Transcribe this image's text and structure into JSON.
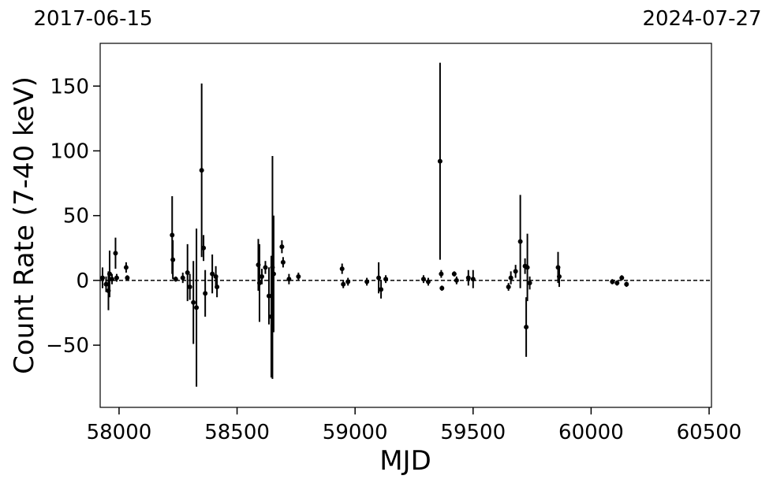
{
  "chart_data": {
    "type": "errorbar",
    "annotations": [
      "2017-06-15",
      "2024-07-27"
    ],
    "x_label": "MJD",
    "y_label": "Count Rate (7-40 keV)",
    "xlim": [
      57920,
      60510
    ],
    "ylim": [
      -98,
      183
    ],
    "xticks": [
      58000,
      58500,
      59000,
      59500,
      60000,
      60500
    ],
    "yticks": [
      {
        "value": -50,
        "label": "−50"
      },
      0,
      50,
      100,
      150
    ],
    "reference_line": 0,
    "series": [
      {
        "color": "#000000",
        "x": [
          57930,
          57945,
          57955,
          57960,
          57970,
          57985,
          57990,
          58030,
          58035,
          58225,
          58228,
          58240,
          58270,
          58290,
          58300,
          58315,
          58328,
          58350,
          58358,
          58365,
          58395,
          58410,
          58415,
          58590,
          58595,
          58605,
          58620,
          58635,
          58645,
          58650,
          58655,
          58690,
          58695,
          58720,
          58760,
          58945,
          58950,
          58970,
          59050,
          59100,
          59110,
          59130,
          59290,
          59310,
          59360,
          59365,
          59368,
          59420,
          59430,
          59480,
          59500,
          59650,
          59660,
          59680,
          59700,
          59720,
          59725,
          59730,
          59740,
          59860,
          59865,
          60090,
          60110,
          60130,
          60150
        ],
        "values": [
          2,
          -3,
          -8,
          5,
          1,
          21,
          2,
          10,
          2,
          35,
          16,
          1,
          2,
          6,
          -5,
          -17,
          -21,
          85,
          25,
          -10,
          5,
          3,
          -5,
          12,
          -2,
          3,
          10,
          -12,
          -28,
          10,
          5,
          26,
          14,
          1,
          3,
          9,
          -3,
          -1,
          -1,
          2,
          -7,
          1,
          1,
          -1,
          92,
          5,
          -6,
          5,
          0,
          2,
          1,
          -5,
          2,
          7,
          30,
          11,
          -36,
          10,
          -2,
          10,
          3,
          -1,
          -2,
          2,
          -3
        ],
        "errors": [
          8,
          6,
          15,
          18,
          4,
          12,
          3,
          4,
          2,
          30,
          15,
          2,
          4,
          22,
          10,
          32,
          61,
          67,
          10,
          18,
          15,
          8,
          8,
          20,
          30,
          6,
          5,
          22,
          47,
          86,
          45,
          5,
          4,
          4,
          3,
          4,
          3,
          3,
          3,
          12,
          7,
          3,
          3,
          3,
          76,
          3,
          2,
          2,
          3,
          6,
          7,
          3,
          5,
          5,
          36,
          6,
          23,
          26,
          5,
          12,
          8,
          2,
          2,
          2,
          2
        ]
      }
    ]
  }
}
